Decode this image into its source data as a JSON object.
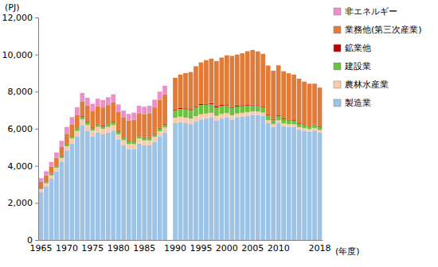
{
  "chart_data": {
    "type": "bar",
    "stacked": true,
    "grid": false,
    "legend": "right",
    "y_label": "(PJ)",
    "x_label": "(年度)",
    "categories": [
      "1965",
      null,
      null,
      null,
      null,
      "1970",
      null,
      null,
      null,
      null,
      "1975",
      null,
      null,
      null,
      null,
      "1980",
      null,
      null,
      null,
      null,
      "1985",
      null,
      null,
      null,
      null,
      null,
      "1990",
      null,
      null,
      null,
      null,
      "1995",
      null,
      null,
      null,
      null,
      "2000",
      null,
      null,
      null,
      null,
      "2005",
      null,
      null,
      null,
      null,
      "2010",
      null,
      null,
      null,
      null,
      null,
      null,
      null,
      "2018"
    ],
    "ylim": [
      0,
      12000
    ],
    "yticks": [
      0,
      {
        "value": 2000,
        "label": "2,000"
      },
      {
        "value": 4000,
        "label": "4,000"
      },
      {
        "value": 6000,
        "label": "6,000"
      },
      {
        "value": 8000,
        "label": "8,000"
      },
      {
        "value": 10000,
        "label": "10,000"
      },
      {
        "value": 12000,
        "label": "12,000"
      }
    ],
    "series": [
      {
        "name": "製造業",
        "color": "#9dc3e6",
        "values": [
          2600,
          2900,
          3300,
          3700,
          4200,
          4800,
          5200,
          5600,
          6200,
          5900,
          5600,
          5800,
          5700,
          5800,
          5900,
          5400,
          5100,
          4900,
          4900,
          5200,
          5100,
          5100,
          5300,
          5600,
          5800,
          null,
          6300,
          6350,
          6300,
          6250,
          6400,
          6500,
          6550,
          6600,
          6450,
          6550,
          6600,
          6500,
          6600,
          6650,
          6700,
          6750,
          6750,
          6700,
          6300,
          6100,
          6300,
          6150,
          6100,
          6100,
          5950,
          5900,
          5850,
          5900,
          5800
        ]
      },
      {
        "name": "農林水産業",
        "color": "#f8cbad",
        "values": [
          150,
          160,
          180,
          200,
          220,
          250,
          270,
          280,
          300,
          310,
          300,
          300,
          300,
          300,
          300,
          290,
          280,
          270,
          270,
          270,
          270,
          270,
          270,
          270,
          270,
          null,
          300,
          300,
          300,
          290,
          280,
          280,
          270,
          260,
          250,
          250,
          240,
          230,
          220,
          210,
          200,
          190,
          180,
          170,
          160,
          150,
          150,
          140,
          140,
          140,
          130,
          130,
          130,
          130,
          130
        ]
      },
      {
        "name": "建設業",
        "color": "#70c040",
        "values": [
          60,
          70,
          80,
          90,
          100,
          110,
          120,
          130,
          150,
          150,
          140,
          140,
          140,
          150,
          150,
          140,
          140,
          140,
          140,
          140,
          140,
          140,
          150,
          150,
          160,
          null,
          400,
          420,
          450,
          470,
          490,
          500,
          480,
          470,
          450,
          440,
          420,
          400,
          380,
          360,
          340,
          320,
          300,
          280,
          260,
          240,
          230,
          220,
          210,
          200,
          190,
          180,
          170,
          170,
          160
        ]
      },
      {
        "name": "鉱業他",
        "color": "#c00000",
        "values": [
          20,
          20,
          20,
          20,
          20,
          20,
          20,
          20,
          30,
          30,
          30,
          30,
          30,
          30,
          30,
          30,
          30,
          30,
          30,
          30,
          30,
          30,
          30,
          30,
          30,
          null,
          50,
          50,
          50,
          50,
          50,
          50,
          50,
          50,
          50,
          50,
          50,
          50,
          50,
          50,
          40,
          40,
          40,
          40,
          40,
          40,
          40,
          40,
          40,
          30,
          30,
          30,
          30,
          30,
          30
        ]
      },
      {
        "name": "業務他(第三次産業)",
        "color": "#e07b39",
        "values": [
          300,
          330,
          370,
          420,
          480,
          550,
          620,
          700,
          800,
          850,
          900,
          950,
          980,
          1000,
          1050,
          1050,
          1050,
          1100,
          1150,
          1200,
          1250,
          1300,
          1400,
          1500,
          1600,
          null,
          1700,
          1800,
          1900,
          2000,
          2150,
          2250,
          2350,
          2400,
          2450,
          2550,
          2650,
          2750,
          2750,
          2800,
          2900,
          2950,
          2900,
          2850,
          2650,
          2600,
          2700,
          2550,
          2500,
          2450,
          2400,
          2300,
          2250,
          2200,
          2100
        ]
      },
      {
        "name": "非エネルギー",
        "color": "#e991c8",
        "values": [
          200,
          230,
          260,
          290,
          330,
          370,
          400,
          430,
          450,
          430,
          380,
          400,
          400,
          420,
          430,
          400,
          380,
          360,
          380,
          400,
          400,
          400,
          420,
          450,
          460,
          null,
          null,
          null,
          null,
          null,
          null,
          null,
          null,
          null,
          null,
          null,
          null,
          null,
          null,
          null,
          null,
          null,
          null,
          null,
          null,
          null,
          null,
          null,
          null,
          null,
          null,
          null,
          null,
          null,
          null
        ]
      }
    ]
  }
}
